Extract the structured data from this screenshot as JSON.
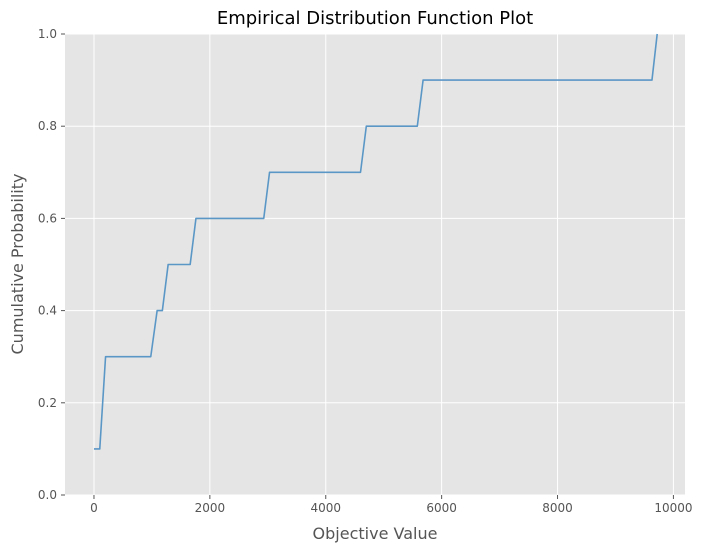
{
  "chart_data": {
    "type": "line",
    "title": "Empirical Distribution Function Plot",
    "xlabel": "Objective Value",
    "ylabel": "Cumulative Probability",
    "xlim": [
      -500,
      10200
    ],
    "ylim": [
      0.0,
      1.0
    ],
    "xticks": [
      0,
      2000,
      4000,
      6000,
      8000,
      10000
    ],
    "xtick_labels": [
      "0",
      "2000",
      "4000",
      "6000",
      "8000",
      "10000"
    ],
    "yticks": [
      0.0,
      0.2,
      0.4,
      0.6,
      0.8,
      1.0
    ],
    "ytick_labels": [
      "0.0",
      "0.2",
      "0.4",
      "0.6",
      "0.8",
      "1.0"
    ],
    "grid": true,
    "style": "ggplot",
    "series": [
      {
        "color": "#5b97c6",
        "points": [
          [
            0,
            0.1
          ],
          [
            100,
            0.1
          ],
          [
            200,
            0.3
          ],
          [
            980,
            0.3
          ],
          [
            1090,
            0.4
          ],
          [
            1180,
            0.4
          ],
          [
            1280,
            0.5
          ],
          [
            1660,
            0.5
          ],
          [
            1760,
            0.6
          ],
          [
            2930,
            0.6
          ],
          [
            3030,
            0.7
          ],
          [
            4600,
            0.7
          ],
          [
            4700,
            0.8
          ],
          [
            5580,
            0.8
          ],
          [
            5680,
            0.9
          ],
          [
            9630,
            0.9
          ],
          [
            9720,
            1.0
          ]
        ]
      }
    ]
  }
}
